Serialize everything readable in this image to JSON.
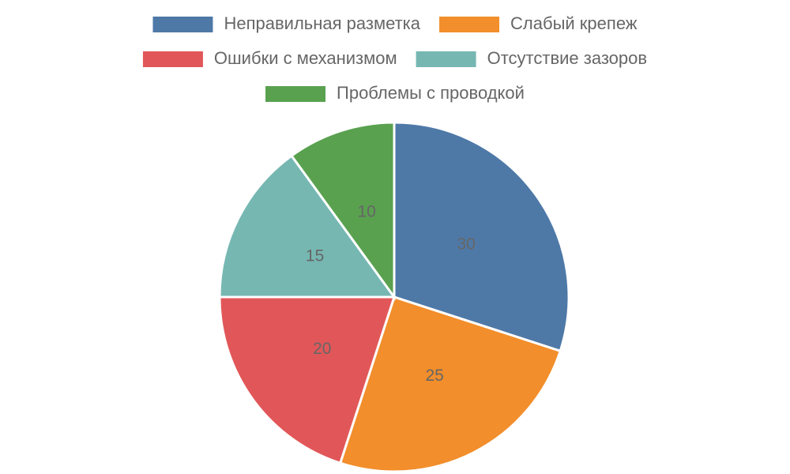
{
  "chart_data": {
    "type": "pie",
    "categories": [
      "Неправильная разметка",
      "Слабый крепеж",
      "Ошибки с механизмом",
      "Отсутствие зазоров",
      "Проблемы с проводкой"
    ],
    "values": [
      30,
      25,
      20,
      15,
      10
    ],
    "colors": [
      "#4e79a7",
      "#f28e2b",
      "#e15759",
      "#76b7b2",
      "#59a14f"
    ],
    "legend": "top"
  }
}
